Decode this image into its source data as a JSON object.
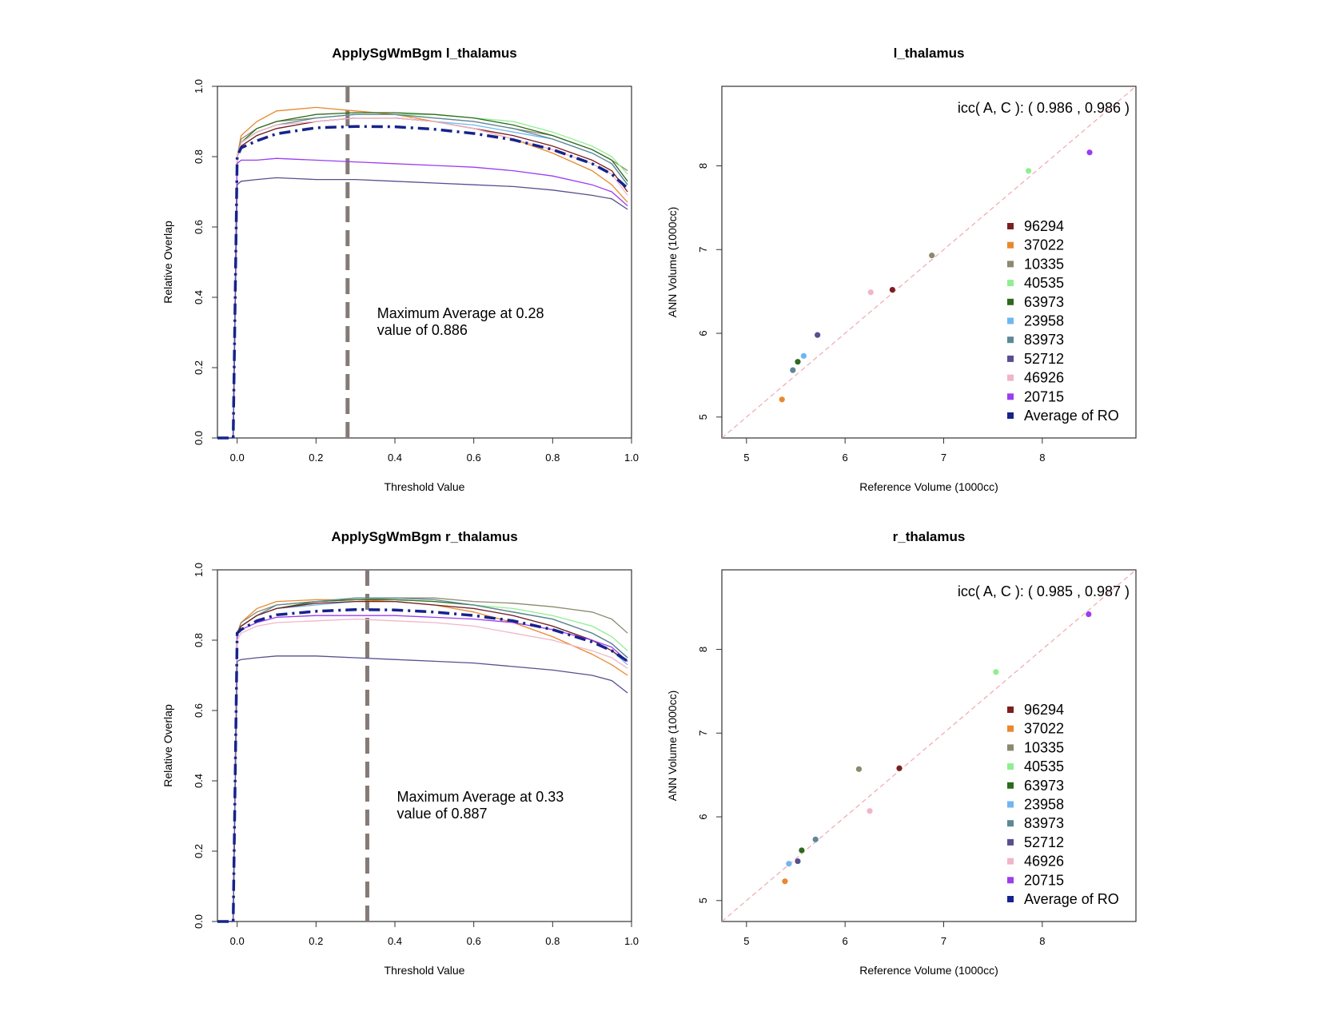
{
  "colors": {
    "96294": "#7b1f1f",
    "37022": "#e8892e",
    "10335": "#8c8a6e",
    "40535": "#90ee90",
    "63973": "#2d6a1e",
    "23958": "#6fb6f2",
    "83973": "#5f8797",
    "52712": "#56508e",
    "46926": "#f0b6c6",
    "20715": "#9b3df0",
    "average": "#16238c",
    "threshold_line": "#857a76",
    "identity_line": "#f0a8b0"
  },
  "chart_data": [
    {
      "type": "line",
      "title": "ApplySgWmBgm l_thalamus",
      "xlabel": "Threshold Value",
      "ylabel": "Relative Overlap",
      "xlim": [
        -0.05,
        1.0
      ],
      "ylim": [
        0.0,
        1.0
      ],
      "xticks": [
        "0.0",
        "0.2",
        "0.4",
        "0.6",
        "0.8",
        "1.0"
      ],
      "yticks": [
        "0.0",
        "0.2",
        "0.4",
        "0.6",
        "0.8",
        "1.0"
      ],
      "annotation": [
        "Maximum Average at  0.28",
        "value of  0.886"
      ],
      "max_threshold": 0.28,
      "x": [
        -0.05,
        -0.01,
        0.0,
        0.01,
        0.05,
        0.1,
        0.2,
        0.3,
        0.4,
        0.5,
        0.6,
        0.7,
        0.8,
        0.9,
        0.95,
        0.99
      ],
      "series": [
        {
          "id": "37022",
          "values": [
            0,
            0,
            0.8,
            0.86,
            0.9,
            0.93,
            0.94,
            0.93,
            0.92,
            0.9,
            0.88,
            0.85,
            0.81,
            0.76,
            0.72,
            0.67
          ]
        },
        {
          "id": "10335",
          "values": [
            0,
            0,
            0.8,
            0.85,
            0.88,
            0.9,
            0.91,
            0.92,
            0.92,
            0.91,
            0.9,
            0.88,
            0.86,
            0.82,
            0.79,
            0.76
          ]
        },
        {
          "id": "40535",
          "values": [
            0,
            0,
            0.8,
            0.84,
            0.87,
            0.89,
            0.91,
            0.92,
            0.92,
            0.92,
            0.91,
            0.9,
            0.87,
            0.83,
            0.8,
            0.75
          ]
        },
        {
          "id": "63973",
          "values": [
            0,
            0,
            0.8,
            0.84,
            0.88,
            0.9,
            0.92,
            0.925,
            0.925,
            0.92,
            0.91,
            0.89,
            0.86,
            0.82,
            0.79,
            0.73
          ]
        },
        {
          "id": "23958",
          "values": [
            0,
            0,
            0.8,
            0.83,
            0.86,
            0.88,
            0.9,
            0.91,
            0.91,
            0.9,
            0.89,
            0.87,
            0.85,
            0.81,
            0.78,
            0.72
          ]
        },
        {
          "id": "83973",
          "values": [
            0,
            0,
            0.8,
            0.84,
            0.87,
            0.89,
            0.91,
            0.92,
            0.92,
            0.91,
            0.9,
            0.88,
            0.85,
            0.81,
            0.78,
            0.72
          ]
        },
        {
          "id": "96294",
          "values": [
            0,
            0,
            0.8,
            0.83,
            0.86,
            0.88,
            0.9,
            0.91,
            0.91,
            0.9,
            0.88,
            0.86,
            0.83,
            0.79,
            0.76,
            0.7
          ]
        },
        {
          "id": "46926",
          "values": [
            0,
            0,
            0.8,
            0.84,
            0.87,
            0.89,
            0.9,
            0.91,
            0.91,
            0.9,
            0.88,
            0.85,
            0.82,
            0.78,
            0.75,
            0.69
          ]
        },
        {
          "id": "20715",
          "values": [
            0,
            0,
            0.78,
            0.79,
            0.79,
            0.795,
            0.79,
            0.785,
            0.78,
            0.775,
            0.77,
            0.76,
            0.745,
            0.72,
            0.7,
            0.66
          ]
        },
        {
          "id": "52712",
          "values": [
            0,
            0,
            0.72,
            0.73,
            0.735,
            0.74,
            0.735,
            0.735,
            0.73,
            0.725,
            0.72,
            0.715,
            0.705,
            0.69,
            0.68,
            0.65
          ]
        },
        {
          "id": "average",
          "values": [
            0,
            0,
            0.8,
            0.825,
            0.845,
            0.865,
            0.882,
            0.886,
            0.885,
            0.878,
            0.866,
            0.848,
            0.82,
            0.78,
            0.75,
            0.71
          ]
        }
      ]
    },
    {
      "type": "scatter",
      "title": "l_thalamus",
      "xlabel": "Reference Volume (1000cc)",
      "ylabel": "ANN Volume (1000cc)",
      "xlim": [
        4.75,
        8.95
      ],
      "ylim": [
        4.75,
        8.95
      ],
      "xticks": [
        "5",
        "6",
        "7",
        "8"
      ],
      "yticks": [
        "5",
        "6",
        "7",
        "8"
      ],
      "annotation": "icc( A, C ): ( 0.986  ,  0.986  )",
      "legend": [
        "96294",
        "37022",
        "10335",
        "40535",
        "63973",
        "23958",
        "83973",
        "52712",
        "46926",
        "20715",
        "Average of RO"
      ],
      "legend_position": "right",
      "points": [
        {
          "id": "96294",
          "x": 6.48,
          "y": 6.52
        },
        {
          "id": "37022",
          "x": 5.36,
          "y": 5.21
        },
        {
          "id": "10335",
          "x": 6.88,
          "y": 6.93
        },
        {
          "id": "40535",
          "x": 7.86,
          "y": 7.94
        },
        {
          "id": "63973",
          "x": 5.52,
          "y": 5.66
        },
        {
          "id": "23958",
          "x": 5.58,
          "y": 5.73
        },
        {
          "id": "83973",
          "x": 5.47,
          "y": 5.56
        },
        {
          "id": "52712",
          "x": 5.72,
          "y": 5.98
        },
        {
          "id": "46926",
          "x": 6.26,
          "y": 6.49
        },
        {
          "id": "20715",
          "x": 8.48,
          "y": 8.16
        }
      ]
    },
    {
      "type": "line",
      "title": "ApplySgWmBgm r_thalamus",
      "xlabel": "Threshold Value",
      "ylabel": "Relative Overlap",
      "xlim": [
        -0.05,
        1.0
      ],
      "ylim": [
        0.0,
        1.0
      ],
      "xticks": [
        "0.0",
        "0.2",
        "0.4",
        "0.6",
        "0.8",
        "1.0"
      ],
      "yticks": [
        "0.0",
        "0.2",
        "0.4",
        "0.6",
        "0.8",
        "1.0"
      ],
      "annotation": [
        "Maximum Average at  0.33",
        "value of  0.887"
      ],
      "max_threshold": 0.33,
      "x": [
        -0.05,
        -0.01,
        0.0,
        0.01,
        0.05,
        0.1,
        0.2,
        0.3,
        0.4,
        0.5,
        0.6,
        0.7,
        0.8,
        0.9,
        0.95,
        0.99
      ],
      "series": [
        {
          "id": "37022",
          "values": [
            0,
            0,
            0.82,
            0.85,
            0.89,
            0.91,
            0.915,
            0.915,
            0.91,
            0.9,
            0.88,
            0.85,
            0.81,
            0.76,
            0.73,
            0.7
          ]
        },
        {
          "id": "10335",
          "values": [
            0,
            0,
            0.82,
            0.85,
            0.88,
            0.9,
            0.91,
            0.915,
            0.92,
            0.92,
            0.91,
            0.905,
            0.895,
            0.88,
            0.86,
            0.82
          ]
        },
        {
          "id": "40535",
          "values": [
            0,
            0,
            0.82,
            0.84,
            0.87,
            0.89,
            0.91,
            0.915,
            0.915,
            0.91,
            0.9,
            0.89,
            0.87,
            0.84,
            0.81,
            0.77
          ]
        },
        {
          "id": "63973",
          "values": [
            0,
            0,
            0.82,
            0.84,
            0.87,
            0.89,
            0.91,
            0.915,
            0.915,
            0.91,
            0.9,
            0.88,
            0.86,
            0.82,
            0.79,
            0.75
          ]
        },
        {
          "id": "23958",
          "values": [
            0,
            0,
            0.82,
            0.84,
            0.87,
            0.89,
            0.9,
            0.91,
            0.91,
            0.9,
            0.89,
            0.87,
            0.84,
            0.8,
            0.77,
            0.73
          ]
        },
        {
          "id": "83973",
          "values": [
            0,
            0,
            0.82,
            0.84,
            0.87,
            0.9,
            0.91,
            0.92,
            0.92,
            0.915,
            0.9,
            0.88,
            0.86,
            0.82,
            0.79,
            0.75
          ]
        },
        {
          "id": "96294",
          "values": [
            0,
            0,
            0.82,
            0.84,
            0.87,
            0.89,
            0.905,
            0.91,
            0.91,
            0.9,
            0.89,
            0.87,
            0.84,
            0.8,
            0.77,
            0.74
          ]
        },
        {
          "id": "20715",
          "values": [
            0,
            0,
            0.82,
            0.83,
            0.85,
            0.865,
            0.87,
            0.87,
            0.87,
            0.865,
            0.86,
            0.85,
            0.83,
            0.8,
            0.78,
            0.74
          ]
        },
        {
          "id": "46926",
          "values": [
            0,
            0,
            0.8,
            0.82,
            0.84,
            0.85,
            0.855,
            0.86,
            0.855,
            0.85,
            0.84,
            0.82,
            0.8,
            0.77,
            0.75,
            0.72
          ]
        },
        {
          "id": "52712",
          "values": [
            0,
            0,
            0.74,
            0.745,
            0.75,
            0.755,
            0.755,
            0.75,
            0.745,
            0.74,
            0.735,
            0.725,
            0.715,
            0.7,
            0.685,
            0.65
          ]
        },
        {
          "id": "average",
          "values": [
            0,
            0,
            0.82,
            0.83,
            0.855,
            0.872,
            0.882,
            0.887,
            0.886,
            0.88,
            0.87,
            0.855,
            0.83,
            0.795,
            0.77,
            0.74
          ]
        }
      ]
    },
    {
      "type": "scatter",
      "title": "r_thalamus",
      "xlabel": "Reference Volume (1000cc)",
      "ylabel": "ANN Volume (1000cc)",
      "xlim": [
        4.75,
        8.95
      ],
      "ylim": [
        4.75,
        8.95
      ],
      "xticks": [
        "5",
        "6",
        "7",
        "8"
      ],
      "yticks": [
        "5",
        "6",
        "7",
        "8"
      ],
      "annotation": "icc( A, C ): ( 0.985  ,  0.987  )",
      "legend": [
        "96294",
        "37022",
        "10335",
        "40535",
        "63973",
        "23958",
        "83973",
        "52712",
        "46926",
        "20715",
        "Average of RO"
      ],
      "legend_position": "right",
      "points": [
        {
          "id": "96294",
          "x": 6.55,
          "y": 6.58
        },
        {
          "id": "37022",
          "x": 5.39,
          "y": 5.23
        },
        {
          "id": "10335",
          "x": 6.14,
          "y": 6.57
        },
        {
          "id": "40535",
          "x": 7.53,
          "y": 7.73
        },
        {
          "id": "63973",
          "x": 5.56,
          "y": 5.6
        },
        {
          "id": "23958",
          "x": 5.43,
          "y": 5.44
        },
        {
          "id": "83973",
          "x": 5.7,
          "y": 5.73
        },
        {
          "id": "52712",
          "x": 5.52,
          "y": 5.47
        },
        {
          "id": "46926",
          "x": 6.25,
          "y": 6.07
        },
        {
          "id": "20715",
          "x": 8.47,
          "y": 8.42
        }
      ]
    }
  ]
}
